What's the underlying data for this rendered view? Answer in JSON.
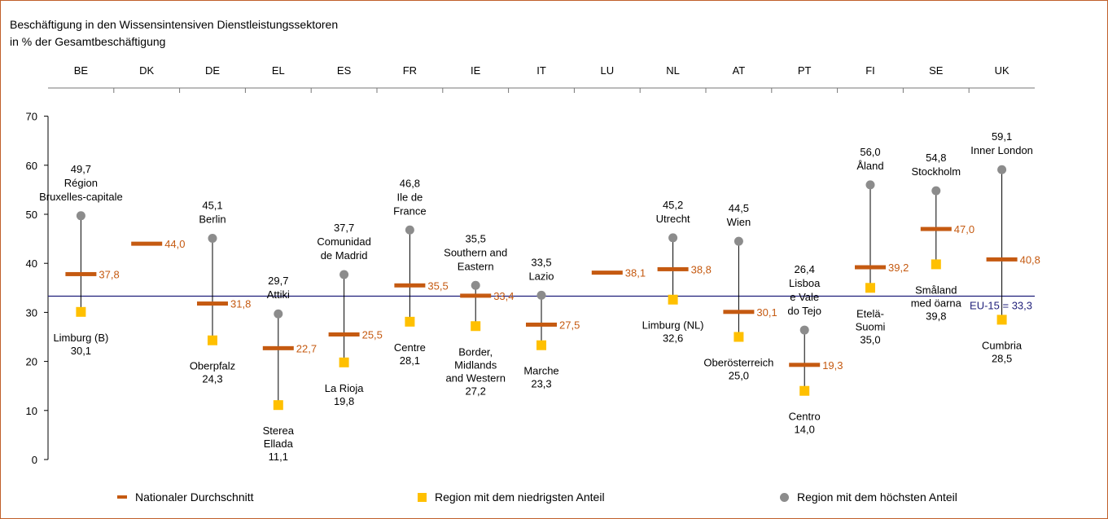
{
  "chart_data": {
    "type": "scatter",
    "title": "Beschäftigung in den Wissensintensiven Dienstleistungssektoren",
    "subtitle": "in % der Gesamtbeschäftigung",
    "ylim": [
      0,
      70
    ],
    "yticks": [
      0,
      10,
      20,
      30,
      40,
      50,
      60,
      70
    ],
    "grid": false,
    "legend_position": "bottom",
    "reference_line": {
      "label": "EU-15 = 33,3",
      "value": 33.3
    },
    "categories": [
      "BE",
      "DK",
      "DE",
      "EL",
      "ES",
      "FR",
      "IE",
      "IT",
      "LU",
      "NL",
      "AT",
      "PT",
      "FI",
      "SE",
      "UK"
    ],
    "series": [
      {
        "name": "Nationaler Durchschnitt",
        "values": [
          37.8,
          44.0,
          31.8,
          22.7,
          25.5,
          35.5,
          33.4,
          27.5,
          38.1,
          38.8,
          30.1,
          19.3,
          39.2,
          47.0,
          40.8
        ],
        "labels": [
          "37,8",
          "44,0",
          "31,8",
          "22,7",
          "25,5",
          "35,5",
          "33,4",
          "27,5",
          "38,1",
          "38,8",
          "30,1",
          "19,3",
          "39,2",
          "47,0",
          "40,8"
        ]
      },
      {
        "name": "Region mit dem niedrigsten Anteil",
        "values": [
          30.1,
          null,
          24.3,
          11.1,
          19.8,
          28.1,
          27.2,
          23.3,
          null,
          32.6,
          25.0,
          14.0,
          35.0,
          39.8,
          28.5
        ],
        "labels": [
          [
            "Limburg (B)",
            "30,1"
          ],
          null,
          [
            "Oberpfalz",
            "24,3"
          ],
          [
            "Sterea",
            "Ellada",
            "11,1"
          ],
          [
            "La Rioja",
            "19,8"
          ],
          [
            "Centre",
            "28,1"
          ],
          [
            "Border,",
            "Midlands",
            "and Western",
            "27,2"
          ],
          [
            "Marche",
            "23,3"
          ],
          null,
          [
            "Limburg (NL)",
            "32,6"
          ],
          [
            "Oberösterreich",
            "25,0"
          ],
          [
            "Centro",
            "14,0"
          ],
          [
            "Etelä-",
            "Suomi",
            "35,0"
          ],
          [
            "Småland",
            "med öarna",
            "39,8"
          ],
          [
            "Cumbria",
            "28,5"
          ]
        ]
      },
      {
        "name": "Region mit dem höchsten Anteil",
        "values": [
          49.7,
          null,
          45.1,
          29.7,
          37.7,
          46.8,
          35.5,
          33.5,
          null,
          45.2,
          44.5,
          26.4,
          56.0,
          54.8,
          59.1
        ],
        "labels": [
          [
            "49,7",
            "Région",
            "Bruxelles-capitale"
          ],
          null,
          [
            "45,1",
            "Berlin"
          ],
          [
            "29,7",
            "Attiki"
          ],
          [
            "37,7",
            "Comunidad",
            "de Madrid"
          ],
          [
            "46,8",
            "Ile de",
            "France"
          ],
          [
            "35,5",
            "Southern and",
            "Eastern"
          ],
          [
            "33,5",
            "Lazio"
          ],
          null,
          [
            "45,2",
            "Utrecht"
          ],
          [
            "44,5",
            "Wien"
          ],
          [
            "26,4",
            "Lisboa",
            "e Vale",
            "do Tejo"
          ],
          [
            "56,0",
            "Åland"
          ],
          [
            "54,8",
            "Stockholm"
          ],
          [
            "59,1",
            "Inner London"
          ]
        ]
      }
    ]
  },
  "colors": {
    "national_average": "#c55a11",
    "lowest_region": "#ffc000",
    "highest_region": "#8c8c8c",
    "eu_line": "#1f1f7a",
    "frame": "#c0602a"
  }
}
